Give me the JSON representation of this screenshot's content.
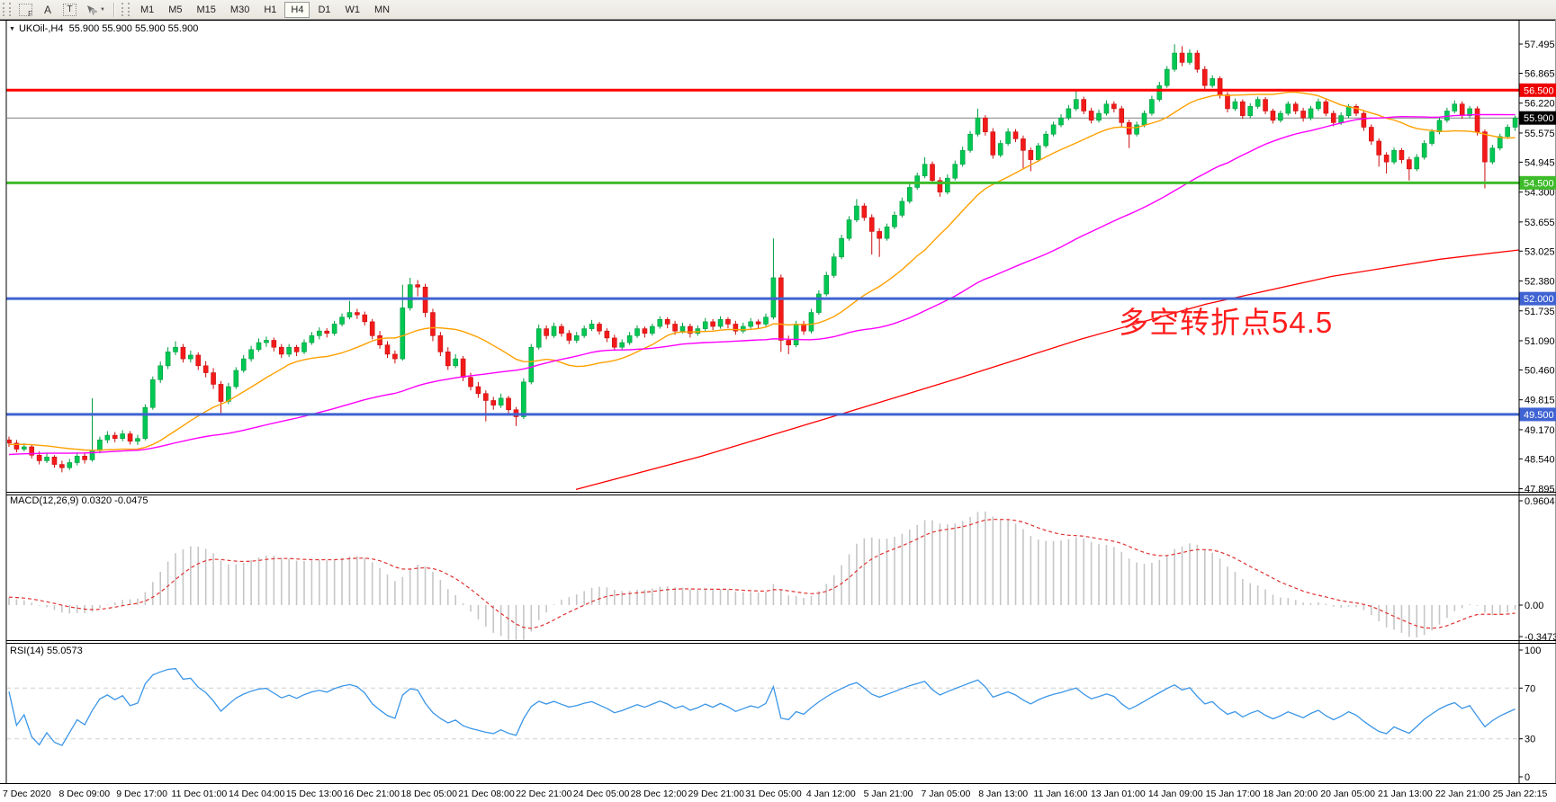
{
  "toolbar": {
    "f_label": "F",
    "a_label": "A",
    "t_label": "T",
    "caret": "▼",
    "timeframes": [
      {
        "label": "M1",
        "active": false
      },
      {
        "label": "M5",
        "active": false
      },
      {
        "label": "M15",
        "active": false
      },
      {
        "label": "M30",
        "active": false
      },
      {
        "label": "H1",
        "active": false
      },
      {
        "label": "H4",
        "active": true
      },
      {
        "label": "D1",
        "active": false
      },
      {
        "label": "W1",
        "active": false
      },
      {
        "label": "MN",
        "active": false
      }
    ]
  },
  "chart": {
    "header": {
      "symbol": "UKOil-,H4",
      "quotes": "55.900 55.900 55.900 55.900"
    },
    "annotation": {
      "text": "多空转折点54.5",
      "color": "#ff1e1e"
    }
  },
  "macd_panel": {
    "label": "MACD(12,26,9) 0.0320 -0.0475"
  },
  "rsi_panel": {
    "label": "RSI(14) 55.0573"
  },
  "chart_data": {
    "type": "candlestick",
    "symbol": "UKOil-",
    "timeframe": "H4",
    "ohlc_display": [
      55.9,
      55.9,
      55.9,
      55.9
    ],
    "current_price": 55.9,
    "price_range": [
      47.85,
      58.0
    ],
    "up_color": "#00c853",
    "up_stroke": "#009b3f",
    "down_color": "#f31a1a",
    "down_stroke": "#c90d0d",
    "price_axis_ticks": [
      "57.495",
      "56.865",
      "56.220",
      "55.575",
      "54.945",
      "54.300",
      "53.655",
      "53.025",
      "52.380",
      "51.735",
      "51.090",
      "50.460",
      "49.815",
      "49.170",
      "48.540",
      "47.895"
    ],
    "time_labels": [
      "7 Dec 2020",
      "8 Dec 09:00",
      "9 Dec 17:00",
      "11 Dec 01:00",
      "14 Dec 04:00",
      "15 Dec 13:00",
      "16 Dec 21:00",
      "18 Dec 05:00",
      "21 Dec 08:00",
      "22 Dec 21:00",
      "24 Dec 05:00",
      "28 Dec 12:00",
      "29 Dec 21:00",
      "31 Dec 05:00",
      "4 Jan 12:00",
      "5 Jan 21:00",
      "7 Jan 05:00",
      "8 Jan 13:00",
      "11 Jan 16:00",
      "13 Jan 01:00",
      "14 Jan 09:00",
      "15 Jan 17:00",
      "18 Jan 20:00",
      "20 Jan 05:00",
      "21 Jan 13:00",
      "22 Jan 21:00",
      "25 Jan 22:15"
    ],
    "hlines": [
      {
        "value": 56.5,
        "label": "56.500",
        "color": "#ff0000",
        "badge_color": "#ee0000",
        "width": 3
      },
      {
        "value": 55.9,
        "label": "55.900",
        "color": "#808080",
        "badge_color": "#000000",
        "width": 1
      },
      {
        "value": 54.5,
        "label": "54.500",
        "color": "#3dbb2a",
        "badge_color": "#3dbb2a",
        "width": 3
      },
      {
        "value": 52.0,
        "label": "52.000",
        "color": "#3f63d2",
        "badge_color": "#3f63d2",
        "width": 3
      },
      {
        "value": 49.5,
        "label": "49.500",
        "color": "#3f63d2",
        "badge_color": "#3f63d2",
        "width": 3
      }
    ],
    "moving_averages": [
      {
        "period": 20,
        "color": "#ffa000"
      },
      {
        "period": 60,
        "color": "#ff00ff"
      }
    ],
    "trend_ma_red": {
      "color": "#ff0000",
      "points": [
        [
          640,
          47.88
        ],
        [
          780,
          48.6
        ],
        [
          920,
          49.42
        ],
        [
          1060,
          50.25
        ],
        [
          1200,
          51.12
        ],
        [
          1340,
          51.88
        ],
        [
          1480,
          52.48
        ],
        [
          1600,
          52.85
        ],
        [
          1688,
          53.05
        ]
      ]
    },
    "macd": {
      "params": [
        12,
        26,
        9
      ],
      "value": 0.032,
      "signal": -0.0475,
      "axis_ticks": [
        "0.9604",
        "0.00",
        "-0.3473"
      ],
      "histogram_color": "#c6c6c6",
      "signal_color": "#e03131"
    },
    "rsi": {
      "period": 14,
      "value": 55.0573,
      "axis_ticks": [
        "100",
        "70",
        "30",
        "0"
      ],
      "levels": [
        70,
        30
      ],
      "color": "#3b96e8"
    },
    "candles": [
      [
        48.95,
        49.02,
        48.8,
        48.88
      ],
      [
        48.88,
        48.95,
        48.68,
        48.75
      ],
      [
        48.75,
        48.88,
        48.7,
        48.8
      ],
      [
        48.8,
        48.84,
        48.55,
        48.62
      ],
      [
        48.62,
        48.7,
        48.42,
        48.5
      ],
      [
        48.5,
        48.66,
        48.45,
        48.58
      ],
      [
        48.58,
        48.62,
        48.35,
        48.42
      ],
      [
        48.42,
        48.5,
        48.25,
        48.35
      ],
      [
        48.35,
        48.54,
        48.3,
        48.46
      ],
      [
        48.46,
        48.68,
        48.4,
        48.6
      ],
      [
        48.6,
        48.66,
        48.44,
        48.52
      ],
      [
        48.52,
        49.85,
        48.48,
        48.72
      ],
      [
        48.72,
        49.02,
        48.66,
        48.95
      ],
      [
        48.95,
        49.14,
        48.88,
        49.05
      ],
      [
        49.05,
        49.12,
        48.9,
        48.98
      ],
      [
        48.98,
        49.16,
        48.92,
        49.08
      ],
      [
        49.08,
        49.14,
        48.85,
        48.92
      ],
      [
        48.92,
        49.06,
        48.84,
        48.98
      ],
      [
        48.98,
        49.72,
        48.94,
        49.65
      ],
      [
        49.65,
        50.32,
        49.6,
        50.25
      ],
      [
        50.25,
        50.64,
        50.18,
        50.55
      ],
      [
        50.55,
        50.95,
        50.48,
        50.85
      ],
      [
        50.85,
        51.08,
        50.78,
        50.95
      ],
      [
        50.95,
        51.02,
        50.62,
        50.7
      ],
      [
        50.7,
        50.88,
        50.62,
        50.78
      ],
      [
        50.78,
        50.84,
        50.46,
        50.55
      ],
      [
        50.55,
        50.65,
        50.3,
        50.4
      ],
      [
        50.4,
        50.5,
        50.05,
        50.15
      ],
      [
        50.15,
        50.22,
        49.5,
        49.78
      ],
      [
        49.78,
        50.18,
        49.72,
        50.1
      ],
      [
        50.1,
        50.52,
        50.05,
        50.45
      ],
      [
        50.45,
        50.78,
        50.4,
        50.7
      ],
      [
        50.7,
        50.98,
        50.64,
        50.9
      ],
      [
        50.9,
        51.14,
        50.85,
        51.05
      ],
      [
        51.05,
        51.18,
        50.96,
        51.1
      ],
      [
        51.1,
        51.16,
        50.86,
        50.95
      ],
      [
        50.95,
        51.02,
        50.72,
        50.8
      ],
      [
        50.8,
        51.02,
        50.74,
        50.95
      ],
      [
        50.95,
        51.0,
        50.76,
        50.85
      ],
      [
        50.85,
        51.12,
        50.8,
        51.05
      ],
      [
        51.05,
        51.28,
        51.0,
        51.2
      ],
      [
        51.2,
        51.38,
        51.12,
        51.3
      ],
      [
        51.3,
        51.36,
        51.16,
        51.25
      ],
      [
        51.25,
        51.52,
        51.2,
        51.45
      ],
      [
        51.45,
        51.68,
        51.4,
        51.6
      ],
      [
        51.6,
        51.95,
        51.55,
        51.7
      ],
      [
        51.7,
        51.78,
        51.56,
        51.65
      ],
      [
        51.65,
        51.72,
        51.42,
        51.5
      ],
      [
        51.5,
        51.56,
        51.12,
        51.2
      ],
      [
        51.2,
        51.3,
        50.92,
        51.0
      ],
      [
        51.0,
        51.08,
        50.72,
        50.8
      ],
      [
        50.8,
        50.88,
        50.6,
        50.7
      ],
      [
        50.7,
        52.3,
        50.66,
        51.8
      ],
      [
        51.8,
        52.45,
        51.74,
        52.3
      ],
      [
        52.3,
        52.4,
        52.05,
        52.25
      ],
      [
        52.25,
        52.32,
        51.6,
        51.7
      ],
      [
        51.7,
        51.78,
        51.08,
        51.2
      ],
      [
        51.2,
        51.28,
        50.76,
        50.85
      ],
      [
        50.85,
        50.95,
        50.46,
        50.55
      ],
      [
        50.55,
        50.8,
        50.5,
        50.7
      ],
      [
        50.7,
        50.76,
        50.22,
        50.3
      ],
      [
        50.3,
        50.4,
        50.02,
        50.1
      ],
      [
        50.1,
        50.2,
        49.86,
        49.95
      ],
      [
        49.95,
        50.02,
        49.35,
        49.8
      ],
      [
        49.8,
        49.88,
        49.6,
        49.7
      ],
      [
        49.7,
        49.95,
        49.64,
        49.85
      ],
      [
        49.85,
        49.9,
        49.52,
        49.6
      ],
      [
        49.6,
        49.66,
        49.25,
        49.45
      ],
      [
        49.45,
        50.28,
        49.4,
        50.2
      ],
      [
        50.2,
        51.02,
        50.15,
        50.95
      ],
      [
        50.95,
        51.44,
        50.9,
        51.35
      ],
      [
        51.35,
        51.42,
        51.12,
        51.2
      ],
      [
        51.2,
        51.48,
        51.15,
        51.4
      ],
      [
        51.4,
        51.46,
        51.18,
        51.25
      ],
      [
        51.25,
        51.32,
        51.02,
        51.1
      ],
      [
        51.1,
        51.28,
        51.04,
        51.2
      ],
      [
        51.2,
        51.42,
        51.15,
        51.35
      ],
      [
        51.35,
        51.54,
        51.3,
        51.45
      ],
      [
        51.45,
        51.5,
        51.22,
        51.3
      ],
      [
        51.3,
        51.36,
        51.06,
        51.15
      ],
      [
        51.15,
        51.22,
        50.88,
        50.95
      ],
      [
        50.95,
        51.12,
        50.9,
        51.05
      ],
      [
        51.05,
        51.28,
        51.0,
        51.2
      ],
      [
        51.2,
        51.42,
        51.15,
        51.35
      ],
      [
        51.35,
        51.4,
        51.16,
        51.25
      ],
      [
        51.25,
        51.46,
        51.2,
        51.4
      ],
      [
        51.4,
        51.62,
        51.35,
        51.55
      ],
      [
        51.55,
        51.6,
        51.36,
        51.45
      ],
      [
        51.45,
        51.52,
        51.22,
        51.3
      ],
      [
        51.3,
        51.48,
        51.25,
        51.4
      ],
      [
        51.4,
        51.46,
        51.16,
        51.25
      ],
      [
        51.25,
        51.42,
        51.2,
        51.35
      ],
      [
        51.35,
        51.58,
        51.3,
        51.5
      ],
      [
        51.5,
        51.56,
        51.32,
        51.4
      ],
      [
        51.4,
        51.62,
        51.35,
        51.55
      ],
      [
        51.55,
        51.6,
        51.36,
        51.45
      ],
      [
        51.45,
        51.52,
        51.22,
        51.3
      ],
      [
        51.3,
        51.48,
        51.25,
        51.4
      ],
      [
        51.4,
        51.58,
        51.35,
        51.5
      ],
      [
        51.5,
        51.55,
        51.36,
        51.45
      ],
      [
        51.45,
        51.68,
        51.4,
        51.6
      ],
      [
        51.6,
        53.3,
        51.55,
        52.45
      ],
      [
        52.45,
        52.52,
        50.85,
        51.1
      ],
      [
        51.1,
        51.2,
        50.8,
        51.0
      ],
      [
        51.0,
        51.52,
        50.95,
        51.45
      ],
      [
        51.45,
        51.52,
        51.22,
        51.3
      ],
      [
        51.3,
        51.78,
        51.25,
        51.7
      ],
      [
        51.7,
        52.18,
        51.65,
        52.1
      ],
      [
        52.1,
        52.58,
        52.05,
        52.5
      ],
      [
        52.5,
        52.98,
        52.45,
        52.9
      ],
      [
        52.9,
        53.38,
        52.85,
        53.3
      ],
      [
        53.3,
        53.78,
        53.25,
        53.7
      ],
      [
        53.7,
        54.15,
        53.65,
        54.0
      ],
      [
        54.0,
        54.06,
        53.68,
        53.75
      ],
      [
        53.75,
        53.82,
        52.95,
        53.45
      ],
      [
        53.45,
        53.52,
        52.9,
        53.3
      ],
      [
        53.3,
        53.62,
        53.25,
        53.55
      ],
      [
        53.55,
        53.88,
        53.5,
        53.8
      ],
      [
        53.8,
        54.18,
        53.75,
        54.1
      ],
      [
        54.1,
        54.48,
        54.05,
        54.4
      ],
      [
        54.4,
        54.72,
        54.35,
        54.65
      ],
      [
        54.65,
        55.05,
        54.6,
        54.9
      ],
      [
        54.9,
        54.96,
        54.48,
        54.55
      ],
      [
        54.55,
        54.62,
        54.2,
        54.3
      ],
      [
        54.3,
        54.68,
        54.25,
        54.6
      ],
      [
        54.6,
        54.98,
        54.55,
        54.9
      ],
      [
        54.9,
        55.28,
        54.85,
        55.2
      ],
      [
        55.2,
        55.62,
        55.15,
        55.55
      ],
      [
        55.55,
        56.1,
        55.5,
        55.9
      ],
      [
        55.9,
        55.96,
        55.52,
        55.6
      ],
      [
        55.6,
        55.68,
        55.02,
        55.1
      ],
      [
        55.1,
        55.42,
        55.05,
        55.35
      ],
      [
        55.35,
        55.68,
        55.3,
        55.6
      ],
      [
        55.6,
        55.66,
        55.38,
        55.45
      ],
      [
        55.45,
        55.52,
        54.8,
        55.2
      ],
      [
        55.2,
        55.26,
        54.75,
        55.0
      ],
      [
        55.0,
        55.36,
        54.95,
        55.3
      ],
      [
        55.3,
        55.62,
        55.25,
        55.55
      ],
      [
        55.55,
        55.82,
        55.5,
        55.75
      ],
      [
        55.75,
        55.98,
        55.7,
        55.9
      ],
      [
        55.9,
        56.18,
        55.85,
        56.1
      ],
      [
        56.1,
        56.5,
        56.05,
        56.3
      ],
      [
        56.3,
        56.36,
        55.98,
        56.05
      ],
      [
        56.05,
        56.12,
        55.78,
        55.85
      ],
      [
        55.85,
        56.08,
        55.8,
        56.0
      ],
      [
        56.0,
        56.28,
        55.95,
        56.2
      ],
      [
        56.2,
        56.26,
        56.02,
        56.1
      ],
      [
        56.1,
        56.16,
        55.72,
        55.8
      ],
      [
        55.8,
        55.86,
        55.25,
        55.55
      ],
      [
        55.55,
        55.82,
        55.5,
        55.75
      ],
      [
        55.75,
        56.06,
        55.7,
        56.0
      ],
      [
        56.0,
        56.38,
        55.95,
        56.3
      ],
      [
        56.3,
        56.68,
        56.25,
        56.6
      ],
      [
        56.6,
        57.02,
        56.55,
        56.95
      ],
      [
        56.95,
        57.49,
        56.9,
        57.3
      ],
      [
        57.3,
        57.45,
        57.02,
        57.1
      ],
      [
        57.1,
        57.38,
        57.05,
        57.3
      ],
      [
        57.3,
        57.36,
        56.88,
        56.95
      ],
      [
        56.95,
        57.02,
        56.52,
        56.6
      ],
      [
        56.6,
        56.82,
        56.55,
        56.75
      ],
      [
        56.75,
        56.8,
        56.32,
        56.4
      ],
      [
        56.4,
        56.46,
        56.02,
        56.1
      ],
      [
        56.1,
        56.32,
        56.05,
        56.25
      ],
      [
        56.25,
        56.3,
        55.88,
        55.95
      ],
      [
        55.95,
        56.22,
        55.9,
        56.15
      ],
      [
        56.15,
        56.36,
        56.1,
        56.3
      ],
      [
        56.3,
        56.35,
        55.98,
        56.05
      ],
      [
        56.05,
        56.1,
        55.78,
        55.85
      ],
      [
        55.85,
        56.06,
        55.8,
        56.0
      ],
      [
        56.0,
        56.26,
        55.95,
        56.2
      ],
      [
        56.2,
        56.25,
        55.98,
        56.05
      ],
      [
        56.05,
        56.12,
        55.82,
        55.9
      ],
      [
        55.9,
        56.16,
        55.85,
        56.1
      ],
      [
        56.1,
        56.32,
        56.05,
        56.25
      ],
      [
        56.25,
        56.3,
        55.94,
        56.0
      ],
      [
        56.0,
        56.06,
        55.72,
        55.8
      ],
      [
        55.8,
        56.02,
        55.75,
        55.95
      ],
      [
        55.95,
        56.2,
        55.9,
        56.15
      ],
      [
        56.15,
        56.2,
        55.94,
        56.0
      ],
      [
        56.0,
        56.05,
        55.62,
        55.7
      ],
      [
        55.7,
        55.76,
        55.32,
        55.4
      ],
      [
        55.4,
        55.46,
        54.85,
        55.1
      ],
      [
        55.1,
        55.16,
        54.7,
        54.95
      ],
      [
        54.95,
        55.26,
        54.9,
        55.2
      ],
      [
        55.2,
        55.25,
        54.92,
        55.0
      ],
      [
        55.0,
        55.06,
        54.55,
        54.8
      ],
      [
        54.8,
        55.12,
        54.75,
        55.05
      ],
      [
        55.05,
        55.42,
        55.0,
        55.35
      ],
      [
        55.35,
        55.66,
        55.3,
        55.6
      ],
      [
        55.6,
        55.92,
        55.55,
        55.85
      ],
      [
        55.85,
        56.12,
        55.8,
        56.05
      ],
      [
        56.05,
        56.28,
        56.0,
        56.2
      ],
      [
        56.2,
        56.26,
        55.88,
        55.95
      ],
      [
        55.95,
        56.16,
        55.9,
        56.1
      ],
      [
        56.1,
        56.15,
        55.52,
        55.6
      ],
      [
        55.6,
        55.65,
        54.38,
        54.95
      ],
      [
        54.95,
        55.32,
        54.9,
        55.25
      ],
      [
        55.25,
        55.56,
        55.2,
        55.5
      ],
      [
        55.5,
        55.76,
        55.45,
        55.7
      ],
      [
        55.7,
        55.95,
        55.62,
        55.9
      ]
    ]
  }
}
